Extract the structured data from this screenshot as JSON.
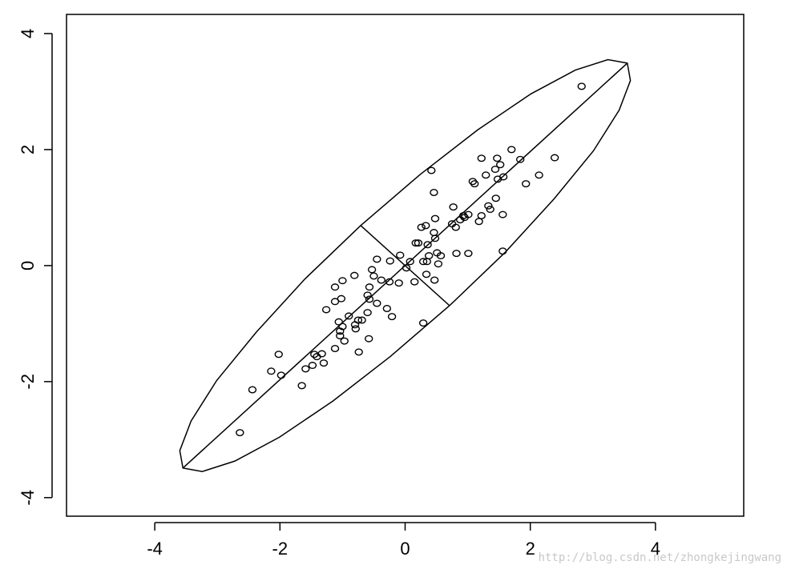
{
  "chart_data": {
    "type": "scatter",
    "x": [
      2.82,
      1.7,
      2.39,
      1.84,
      1.22,
      1.47,
      1.52,
      1.44,
      1.29,
      1.57,
      2.14,
      1.48,
      1.93,
      1.08,
      1.11,
      0.42,
      0.46,
      1.45,
      1.33,
      1.36,
      1.56,
      1.22,
      0.77,
      1.01,
      0.93,
      0.88,
      0.95,
      1.18,
      0.48,
      0.33,
      0.26,
      0.75,
      0.81,
      0.46,
      0.48,
      0.17,
      0.21,
      0.36,
      0.51,
      0.57,
      0.82,
      1.01,
      1.56,
      -0.08,
      0.38,
      0.29,
      0.35,
      0.53,
      0.08,
      -0.24,
      -0.45,
      0.02,
      -0.53,
      0.34,
      -0.81,
      -0.5,
      -1.0,
      0.15,
      0.47,
      -0.38,
      -0.1,
      -0.25,
      -1.12,
      -0.57,
      -0.6,
      -1.02,
      -1.12,
      -0.57,
      -0.45,
      -1.26,
      -0.29,
      -0.6,
      -0.9,
      -0.21,
      -0.69,
      -1.06,
      -0.75,
      0.29,
      -0.8,
      -1.0,
      -1.04,
      -0.79,
      -1.04,
      -0.58,
      -0.97,
      -1.12,
      -0.74,
      -2.02,
      -1.45,
      -1.33,
      -1.41,
      -1.3,
      -1.48,
      -1.59,
      -2.14,
      -1.98,
      -1.65,
      -2.44,
      -2.64
    ],
    "y": [
      3.09,
      2.0,
      1.86,
      1.83,
      1.85,
      1.85,
      1.74,
      1.66,
      1.56,
      1.53,
      1.56,
      1.49,
      1.41,
      1.45,
      1.41,
      1.64,
      1.26,
      1.16,
      1.03,
      0.97,
      0.88,
      0.86,
      1.01,
      0.88,
      0.86,
      0.79,
      0.83,
      0.76,
      0.81,
      0.69,
      0.66,
      0.72,
      0.66,
      0.57,
      0.47,
      0.39,
      0.39,
      0.36,
      0.22,
      0.17,
      0.21,
      0.21,
      0.25,
      0.18,
      0.17,
      0.07,
      0.07,
      0.03,
      0.07,
      0.08,
      0.11,
      -0.04,
      -0.07,
      -0.15,
      -0.17,
      -0.18,
      -0.26,
      -0.28,
      -0.25,
      -0.25,
      -0.3,
      -0.28,
      -0.37,
      -0.37,
      -0.51,
      -0.57,
      -0.62,
      -0.58,
      -0.65,
      -0.76,
      -0.74,
      -0.81,
      -0.87,
      -0.88,
      -0.94,
      -0.97,
      -0.94,
      -0.99,
      -1.02,
      -1.05,
      -1.13,
      -1.09,
      -1.21,
      -1.26,
      -1.3,
      -1.43,
      -1.49,
      -1.53,
      -1.53,
      -1.52,
      -1.57,
      -1.68,
      -1.72,
      -1.78,
      -1.82,
      -1.89,
      -2.07,
      -2.14,
      -2.88
    ],
    "lines": [
      {
        "closed": true,
        "x": [
          3.55,
          3.24,
          2.72,
          2.01,
          1.16,
          0.24,
          -0.71,
          -1.6,
          -2.38,
          -3.01,
          -3.42,
          -3.6,
          -3.55,
          -3.24,
          -2.72,
          -2.01,
          -1.16,
          -0.24,
          0.71,
          1.6,
          2.38,
          3.01,
          3.42,
          3.6
        ],
        "y": [
          3.49,
          3.55,
          3.37,
          2.96,
          2.34,
          1.57,
          0.69,
          -0.23,
          -1.15,
          -1.98,
          -2.68,
          -3.19,
          -3.49,
          -3.55,
          -3.37,
          -2.96,
          -2.34,
          -1.57,
          -0.69,
          0.23,
          1.15,
          1.98,
          2.68,
          3.19
        ]
      },
      {
        "closed": false,
        "x": [
          -3.55,
          3.55
        ],
        "y": [
          -3.49,
          3.49
        ]
      },
      {
        "closed": false,
        "x": [
          -0.71,
          0.71
        ],
        "y": [
          0.69,
          -0.69
        ]
      }
    ],
    "xlim": [
      -5.41,
      5.41
    ],
    "ylim": [
      -4.32,
      4.33
    ],
    "xticks": [
      -4,
      -2,
      0,
      2,
      4
    ],
    "yticks": [
      -4,
      -2,
      0,
      2,
      4
    ],
    "watermark": "http://blog.csdn.net/zhongkejingwang"
  }
}
